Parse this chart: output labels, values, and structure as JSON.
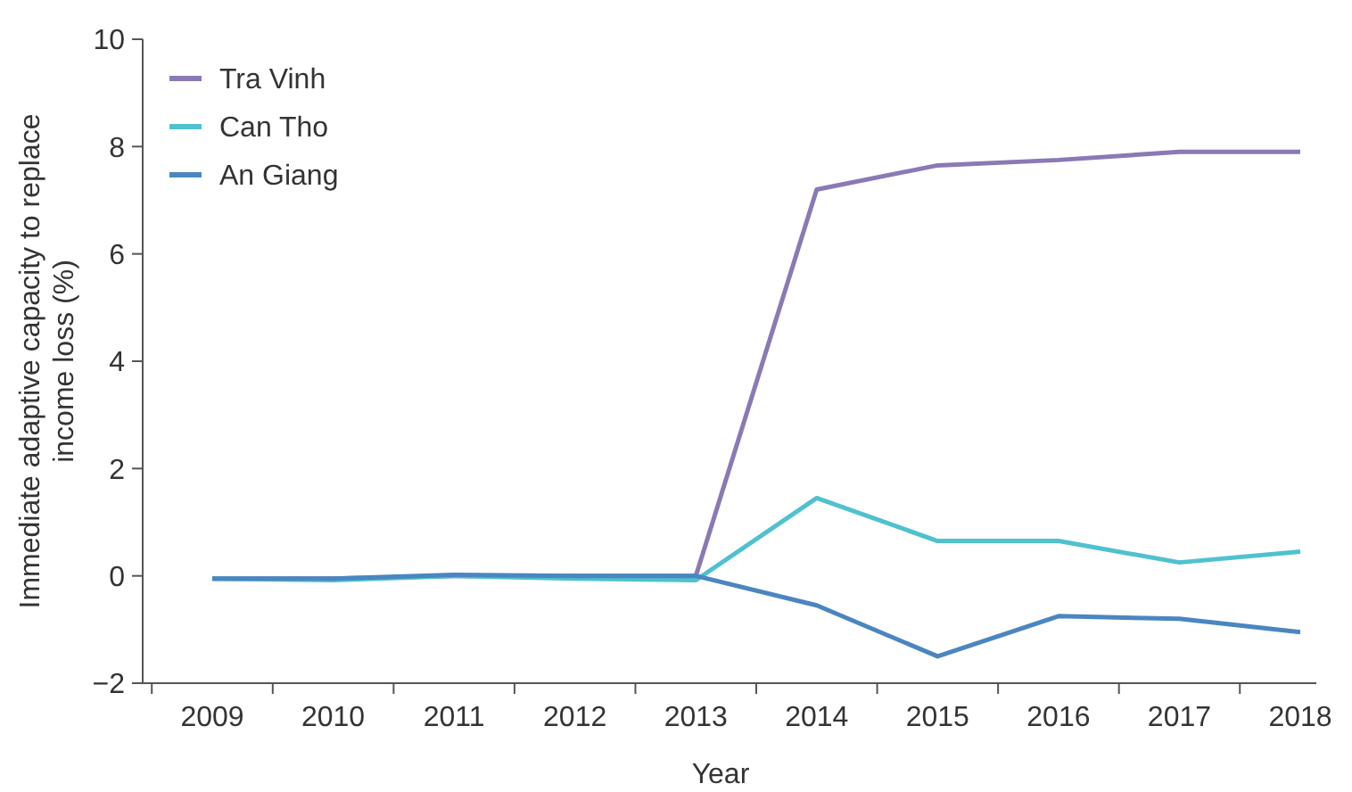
{
  "chart_data": {
    "type": "line",
    "xlabel": "Year",
    "ylabel": "Immediate adaptive capacity to replace income loss (%)",
    "categories": [
      "2009",
      "2010",
      "2011",
      "2012",
      "2013",
      "2014",
      "2015",
      "2016",
      "2017",
      "2018"
    ],
    "series": [
      {
        "name": "Tra Vinh",
        "color": "#8b79b5",
        "values": [
          -0.05,
          -0.05,
          0.0,
          0.0,
          0.0,
          7.2,
          7.65,
          7.75,
          7.9,
          7.9
        ]
      },
      {
        "name": "Can Tho",
        "color": "#4fc1cf",
        "values": [
          -0.05,
          -0.08,
          0.0,
          -0.05,
          -0.08,
          1.45,
          0.65,
          0.65,
          0.25,
          0.45
        ]
      },
      {
        "name": "An Giang",
        "color": "#4a86c0",
        "values": [
          -0.05,
          -0.05,
          0.02,
          0.0,
          0.0,
          -0.55,
          -1.5,
          -0.75,
          -0.8,
          -1.05
        ]
      }
    ],
    "ylim": [
      -2,
      10
    ],
    "yticks": [
      {
        "value": -2,
        "label": "−2"
      },
      0,
      2,
      4,
      6,
      8,
      10
    ],
    "legend": "top left",
    "grid": false,
    "marker": "none",
    "line_style": "solid"
  }
}
